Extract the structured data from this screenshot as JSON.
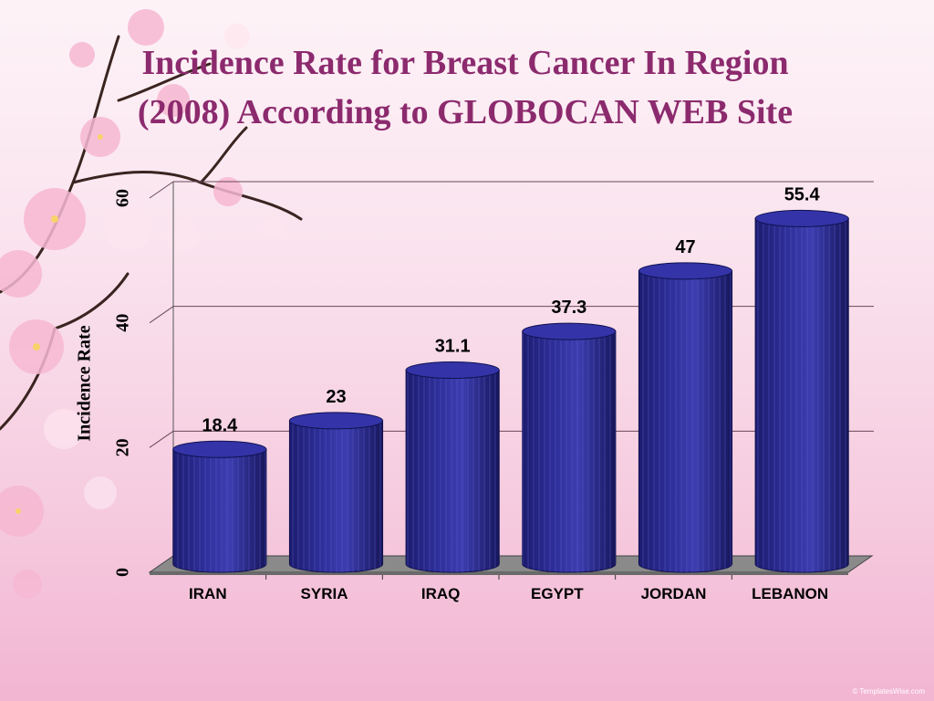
{
  "slide": {
    "title_line1": "Incidence Rate for Breast Cancer In Region",
    "title_line2": "(2008) According to GLOBOCAN WEB Site",
    "title_color": "#8c2a6e",
    "watermark": "© TemplatesWise.com"
  },
  "chart_data": {
    "type": "bar",
    "style": "3d-cylinder",
    "categories": [
      "IRAN",
      "SYRIA",
      "IRAQ",
      "EGYPT",
      "JORDAN",
      "LEBANON"
    ],
    "series": [
      {
        "values": [
          18.4,
          23,
          31.1,
          37.3,
          47,
          55.4
        ]
      }
    ],
    "data_labels": [
      "18.4",
      "23",
      "31.1",
      "37.3",
      "47",
      "55.4"
    ],
    "ylabel": "Incidence Rate",
    "xlabel": "",
    "ylim": [
      0,
      60
    ],
    "yticks": [
      0,
      20,
      40,
      60
    ],
    "grid": true,
    "legend": "none",
    "bar_color": "#2f2f9a",
    "floor_color": "#8a8a8a"
  }
}
